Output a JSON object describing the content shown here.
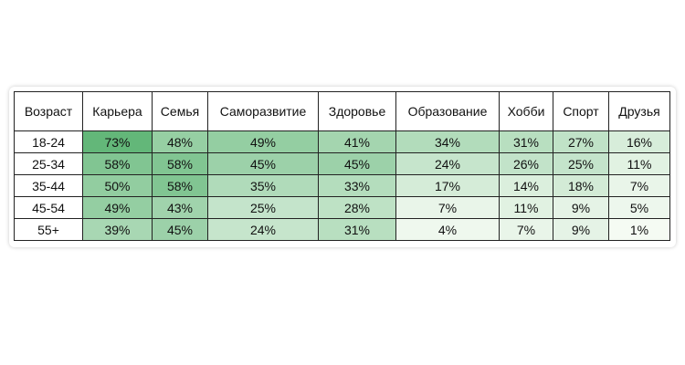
{
  "chart_data": {
    "type": "table",
    "header": [
      "Возраст",
      "Карьера",
      "Семья",
      "Саморазвитие",
      "Здоровье",
      "Образование",
      "Хобби",
      "Спорт",
      "Друзья"
    ],
    "categories": [
      "Карьера",
      "Семья",
      "Саморазвитие",
      "Здоровье",
      "Образование",
      "Хобби",
      "Спорт",
      "Друзья"
    ],
    "rows": [
      {
        "age": "18-24",
        "values": [
          73,
          48,
          49,
          41,
          34,
          31,
          27,
          16
        ],
        "labels": [
          "73%",
          "48%",
          "49%",
          "41%",
          "34%",
          "31%",
          "27%",
          "16%"
        ]
      },
      {
        "age": "25-34",
        "values": [
          58,
          58,
          45,
          45,
          24,
          26,
          25,
          11
        ],
        "labels": [
          "58%",
          "58%",
          "45%",
          "45%",
          "24%",
          "26%",
          "25%",
          "11%"
        ]
      },
      {
        "age": "35-44",
        "values": [
          50,
          58,
          35,
          33,
          17,
          14,
          18,
          7
        ],
        "labels": [
          "50%",
          "58%",
          "35%",
          "33%",
          "17%",
          "14%",
          "18%",
          "7%"
        ]
      },
      {
        "age": "45-54",
        "values": [
          49,
          43,
          25,
          28,
          7,
          11,
          9,
          5
        ],
        "labels": [
          "49%",
          "43%",
          "25%",
          "28%",
          "7%",
          "11%",
          "9%",
          "5%"
        ]
      },
      {
        "age": "55+",
        "values": [
          39,
          45,
          24,
          31,
          4,
          7,
          9,
          1
        ],
        "labels": [
          "39%",
          "45%",
          "24%",
          "31%",
          "4%",
          "7%",
          "9%",
          "1%"
        ]
      }
    ],
    "color_scale": {
      "low": "#f7fcf5",
      "high": "#63b779"
    }
  }
}
